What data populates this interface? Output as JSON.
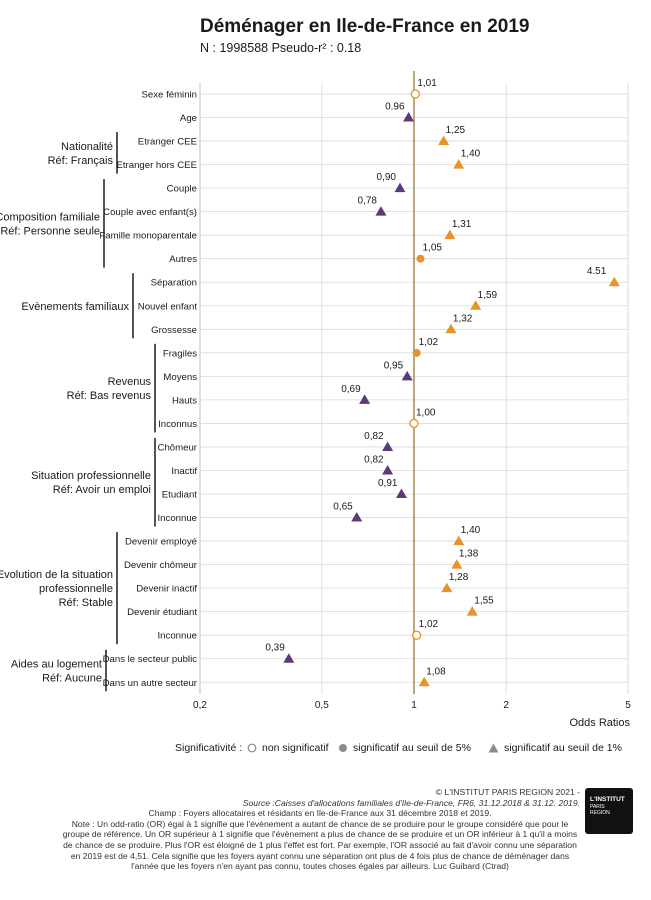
{
  "title": "Déménager en Ile-de-France en 2019",
  "subtitle": "N : 1998588  Pseudo-r² : 0.18",
  "chart_data": {
    "type": "scatter",
    "x_scale": "log",
    "xlim": [
      0.2,
      5
    ],
    "x_ticks": [
      {
        "value": 0.2,
        "label": "0,2"
      },
      {
        "value": 0.5,
        "label": "0,5"
      },
      {
        "value": 1,
        "label": "1"
      },
      {
        "value": 2,
        "label": "2"
      },
      {
        "value": 5,
        "label": "5"
      }
    ],
    "xlabel": "Odds Ratios",
    "reference_line": 1,
    "grid": true,
    "groups": [
      {
        "label": [
          "Nationalité",
          "Réf: Français"
        ],
        "from": 2,
        "to": 3
      },
      {
        "label": [
          "Composition familiale",
          "Réf: Personne seule"
        ],
        "from": 4,
        "to": 7
      },
      {
        "label": [
          "Evènements familiaux"
        ],
        "from": 8,
        "to": 10
      },
      {
        "label": [
          "Revenus",
          "Réf: Bas revenus"
        ],
        "from": 11,
        "to": 14
      },
      {
        "label": [
          "Situation professionnelle",
          "Réf: Avoir un emploi"
        ],
        "from": 15,
        "to": 18
      },
      {
        "label": [
          "Evolution de la situation",
          "professionnelle",
          "Réf: Stable"
        ],
        "from": 19,
        "to": 23
      },
      {
        "label": [
          "Aides au logement",
          "Réf: Aucune"
        ],
        "from": 24,
        "to": 25
      }
    ],
    "rows": [
      {
        "label": "Sexe féminin",
        "value": 1.01,
        "value_label": "1,01",
        "sig": "ns"
      },
      {
        "label": "Age",
        "value": 0.96,
        "value_label": "0.96",
        "sig": "1%"
      },
      {
        "label": "Etranger CEE",
        "value": 1.25,
        "value_label": "1,25",
        "sig": "1%"
      },
      {
        "label": "Etranger hors CEE",
        "value": 1.4,
        "value_label": "1,40",
        "sig": "1%"
      },
      {
        "label": "Couple",
        "value": 0.9,
        "value_label": "0,90",
        "sig": "1%"
      },
      {
        "label": "Couple avec enfant(s)",
        "value": 0.78,
        "value_label": "0,78",
        "sig": "1%"
      },
      {
        "label": "Famille monoparentale",
        "value": 1.31,
        "value_label": "1,31",
        "sig": "1%"
      },
      {
        "label": "Autres",
        "value": 1.05,
        "value_label": "1,05",
        "sig": "5%"
      },
      {
        "label": "Séparation",
        "value": 4.51,
        "value_label": "4.51",
        "sig": "1%"
      },
      {
        "label": "Nouvel enfant",
        "value": 1.59,
        "value_label": "1,59",
        "sig": "1%"
      },
      {
        "label": "Grossesse",
        "value": 1.32,
        "value_label": "1,32",
        "sig": "1%"
      },
      {
        "label": "Fragiles",
        "value": 1.02,
        "value_label": "1,02",
        "sig": "5%"
      },
      {
        "label": "Moyens",
        "value": 0.95,
        "value_label": "0,95",
        "sig": "1%"
      },
      {
        "label": "Hauts",
        "value": 0.69,
        "value_label": "0,69",
        "sig": "1%"
      },
      {
        "label": "Inconnus",
        "value": 1.0,
        "value_label": "1,00",
        "sig": "ns"
      },
      {
        "label": "Chômeur",
        "value": 0.82,
        "value_label": "0,82",
        "sig": "1%"
      },
      {
        "label": "Inactif",
        "value": 0.82,
        "value_label": "0,82",
        "sig": "1%"
      },
      {
        "label": "Etudiant",
        "value": 0.91,
        "value_label": "0,91",
        "sig": "1%"
      },
      {
        "label": "Inconnue",
        "value": 0.65,
        "value_label": "0,65",
        "sig": "1%"
      },
      {
        "label": "Devenir employé",
        "value": 1.4,
        "value_label": "1,40",
        "sig": "1%"
      },
      {
        "label": "Devenir chômeur",
        "value": 1.38,
        "value_label": "1,38",
        "sig": "1%"
      },
      {
        "label": "Devenir inactif",
        "value": 1.28,
        "value_label": "1,28",
        "sig": "1%"
      },
      {
        "label": "Devenir étudiant",
        "value": 1.55,
        "value_label": "1,55",
        "sig": "1%"
      },
      {
        "label": "Inconnue",
        "value": 1.02,
        "value_label": "1,02",
        "sig": "ns"
      },
      {
        "label": "Dans le secteur public",
        "value": 0.39,
        "value_label": "0,39",
        "sig": "1%"
      },
      {
        "label": "Dans un autre secteur",
        "value": 1.08,
        "value_label": "1,08",
        "sig": "1%"
      }
    ],
    "colors": {
      "above_one": "#e8922a",
      "below_one": "#5b3a78",
      "reference": "#a89060",
      "grid": "#d9d9d9",
      "bracket": "#1a1a1a",
      "legend_gray": "#8c8c8c"
    }
  },
  "legend": {
    "label": "Significativité :",
    "items": [
      "non significatif",
      "significatif au seuil de 5%",
      "significatif au seuil de 1%"
    ]
  },
  "footer": {
    "copyright": "© L'INSTITUT PARIS REGION 2021 -",
    "source": "Source :Caisses d'allocations familiales d'Ile-de-France, FR6, 31.12.2018 & 31.12. 2019.",
    "champ": "Champ : Foyers allocataires et résidants en Ile-de-France aux 31 décembre 2018 et 2019.",
    "note": "Note : Un odd-ratio (OR) égal à 1 signifie que l'évènement a autant de chance de se produire pour le groupe considéré que pour le groupe de référence. Un OR supérieur à 1 signifie que l'évènement a plus de chance de se produire et un OR inférieur à 1 qu'il a moins de chance de se produire. Plus l'OR est éloigné de 1 plus l'effet est fort. Par exemple, l'OR associé au fait d'avoir connu une séparation en 2019 est de 4,51. Cela signifie que les foyers ayant connu une séparation ont plus de 4 fois plus de chance de déménager dans l'année que les foyers n'en ayant pas connu, toutes choses égales par ailleurs. Luc Guibard (Ctrad)"
  },
  "logo": {
    "line1": "L'INSTITUT",
    "line2": "PARIS",
    "line3": "REGION"
  }
}
